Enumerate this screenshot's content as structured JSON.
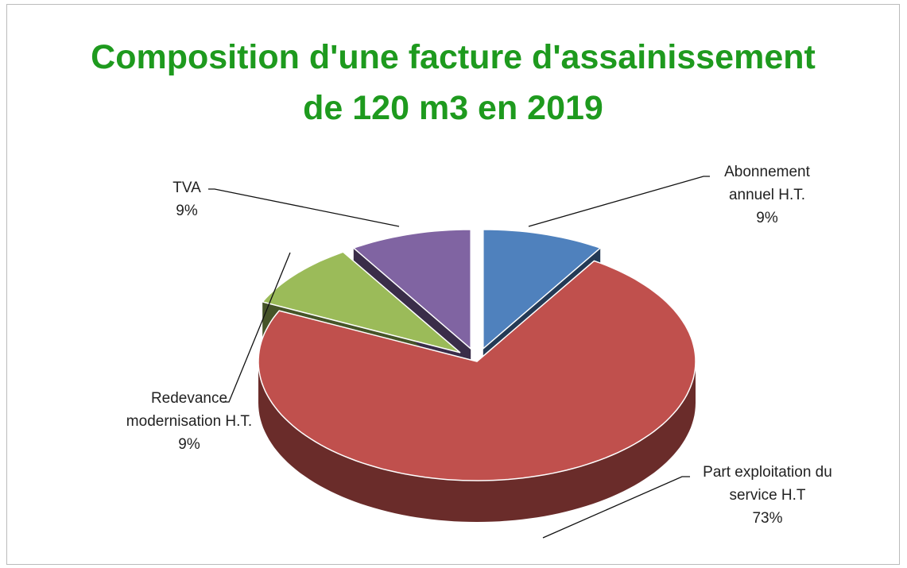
{
  "chart_data": {
    "type": "pie3d",
    "title": "Composition d'une facture d'assainissement de 120 m3 en 2019",
    "categories": [
      "Abonnement annuel H.T.",
      "Part exploitation du service H.T",
      "Redevance modernisation H.T.",
      "TVA"
    ],
    "values": [
      9,
      73,
      9,
      9
    ],
    "value_labels": [
      "9%",
      "73%",
      "9%",
      "9%"
    ],
    "colors": [
      "#4f81bd",
      "#c0504d",
      "#9bbb59",
      "#8064a2"
    ]
  }
}
